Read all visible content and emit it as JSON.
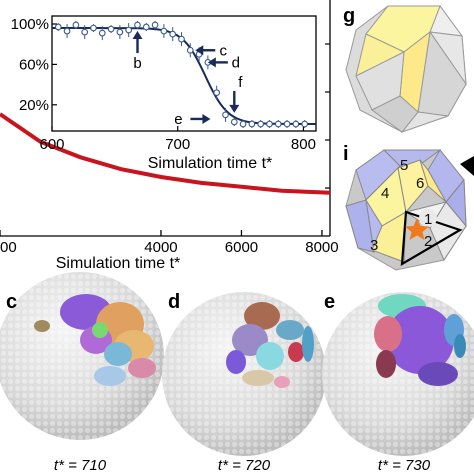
{
  "panels": {
    "g": "g",
    "i": "i",
    "c": "c",
    "d": "d",
    "e": "e"
  },
  "chart_data": [
    {
      "type": "line",
      "title": "",
      "xlabel": "Simulation time t*",
      "ylabel": "",
      "xlim": [
        0,
        8200
      ],
      "x_tick_labels": [
        "00",
        "4000",
        "6000",
        "8000"
      ],
      "series": [
        {
          "color": "#c8141e",
          "x": [
            0,
            1000,
            2000,
            3000,
            4000,
            5000,
            6000,
            7000,
            8200
          ],
          "y": [
            0.62,
            0.48,
            0.4,
            0.34,
            0.3,
            0.27,
            0.25,
            0.23,
            0.22
          ]
        }
      ]
    },
    {
      "type": "scatter",
      "title": "",
      "xlabel": "Simulation time t*",
      "ylabel": "",
      "xlim": [
        600,
        810
      ],
      "ylim": [
        0,
        100
      ],
      "x_tick_labels": [
        "600",
        "700",
        "800"
      ],
      "y_tick_labels": [
        "100%",
        "60%",
        "20%"
      ],
      "series": [
        {
          "color": "#3a5a8c",
          "x": [
            605,
            612,
            619,
            626,
            633,
            640,
            647,
            654,
            661,
            668,
            675,
            682,
            689,
            696,
            703,
            710,
            717,
            724,
            731,
            738,
            745,
            752,
            759,
            766,
            773,
            780,
            787,
            794,
            801
          ],
          "y": [
            97,
            93,
            99,
            92,
            96,
            91,
            95,
            92,
            94,
            99,
            97,
            99,
            93,
            90,
            85,
            74,
            70,
            62,
            32,
            10,
            3,
            1,
            1,
            1,
            1,
            1,
            1,
            1,
            1
          ]
        },
        {
          "color": "#1a2a5a",
          "x": [
            600,
            640,
            680,
            700,
            710,
            720,
            730,
            740,
            760,
            800
          ],
          "y": [
            96,
            96,
            95,
            90,
            80,
            60,
            30,
            10,
            2,
            1
          ]
        }
      ],
      "annotations": [
        {
          "label": "b",
          "x": 668,
          "y": 97
        },
        {
          "label": "c",
          "x": 710,
          "y": 74
        },
        {
          "label": "d",
          "x": 720,
          "y": 62
        },
        {
          "label": "e",
          "x": 730,
          "y": 6
        },
        {
          "label": "f",
          "x": 745,
          "y": 8
        }
      ]
    }
  ],
  "diagram_i": {
    "labels": [
      "1",
      "2",
      "3",
      "4",
      "5",
      "6"
    ]
  },
  "captions": {
    "c": "t* = 710",
    "d": "t* = 720",
    "e": "t* = 730"
  }
}
